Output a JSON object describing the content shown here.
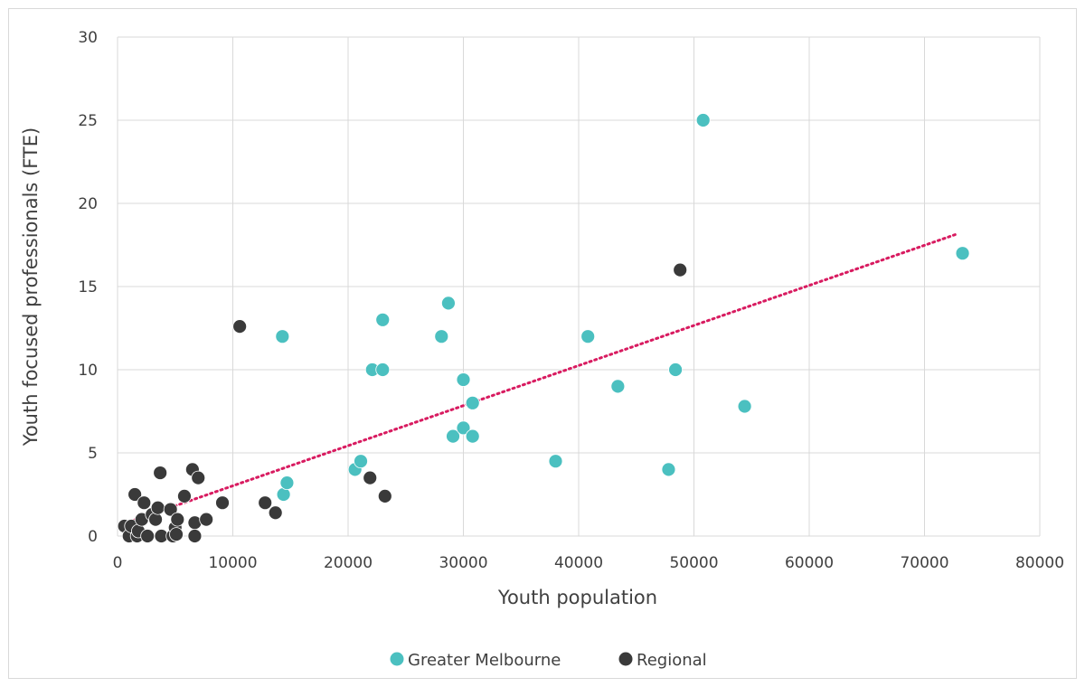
{
  "chart_data": {
    "type": "scatter",
    "title": "",
    "xlabel": "Youth population",
    "ylabel": "Youth focused professionals (FTE)",
    "xlim": [
      0,
      80000
    ],
    "ylim": [
      0,
      30
    ],
    "x_ticks": [
      "0",
      "10000",
      "20000",
      "30000",
      "40000",
      "50000",
      "60000",
      "70000",
      "80000"
    ],
    "y_ticks": [
      "0",
      "5",
      "10",
      "15",
      "20",
      "25",
      "30"
    ],
    "grid": "both",
    "legend_position": "bottom",
    "series": [
      {
        "name": "Greater Melbourne",
        "color": "#4bc0c0",
        "points": [
          [
            14300,
            12
          ],
          [
            14400,
            2.5
          ],
          [
            14700,
            3.2
          ],
          [
            20600,
            4
          ],
          [
            21100,
            4.5
          ],
          [
            22100,
            10
          ],
          [
            23000,
            10
          ],
          [
            23000,
            13
          ],
          [
            28100,
            12
          ],
          [
            28700,
            14
          ],
          [
            29100,
            6
          ],
          [
            30000,
            9.4
          ],
          [
            30000,
            6.5
          ],
          [
            30800,
            8
          ],
          [
            30800,
            6
          ],
          [
            38000,
            4.5
          ],
          [
            40800,
            12
          ],
          [
            43400,
            9
          ],
          [
            47800,
            4
          ],
          [
            48400,
            10
          ],
          [
            50800,
            25
          ],
          [
            54400,
            7.8
          ],
          [
            73300,
            17
          ]
        ]
      },
      {
        "name": "Regional",
        "color": "#3a3a3a",
        "points": [
          [
            600,
            0.6
          ],
          [
            1000,
            0
          ],
          [
            1200,
            0.6
          ],
          [
            1500,
            2.5
          ],
          [
            1700,
            0
          ],
          [
            1800,
            0.3
          ],
          [
            2100,
            1
          ],
          [
            2300,
            2
          ],
          [
            2600,
            0
          ],
          [
            3000,
            1.3
          ],
          [
            3300,
            1
          ],
          [
            3500,
            1.7
          ],
          [
            3700,
            3.8
          ],
          [
            3800,
            0
          ],
          [
            4600,
            1.6
          ],
          [
            4800,
            0
          ],
          [
            5000,
            0.5
          ],
          [
            5100,
            0.1
          ],
          [
            5200,
            1
          ],
          [
            5800,
            2.4
          ],
          [
            6500,
            4
          ],
          [
            6700,
            0.8
          ],
          [
            6700,
            0
          ],
          [
            7000,
            3.5
          ],
          [
            7700,
            1
          ],
          [
            9100,
            2
          ],
          [
            10600,
            12.6
          ],
          [
            12800,
            2
          ],
          [
            13700,
            1.4
          ],
          [
            21900,
            3.5
          ],
          [
            23200,
            2.4
          ],
          [
            48800,
            16
          ]
        ]
      }
    ],
    "trendline": {
      "style": "dotted",
      "color": "#d81b60",
      "x_range": [
        500,
        72800
      ],
      "slope": 0.000241,
      "intercept": 0.61
    }
  }
}
